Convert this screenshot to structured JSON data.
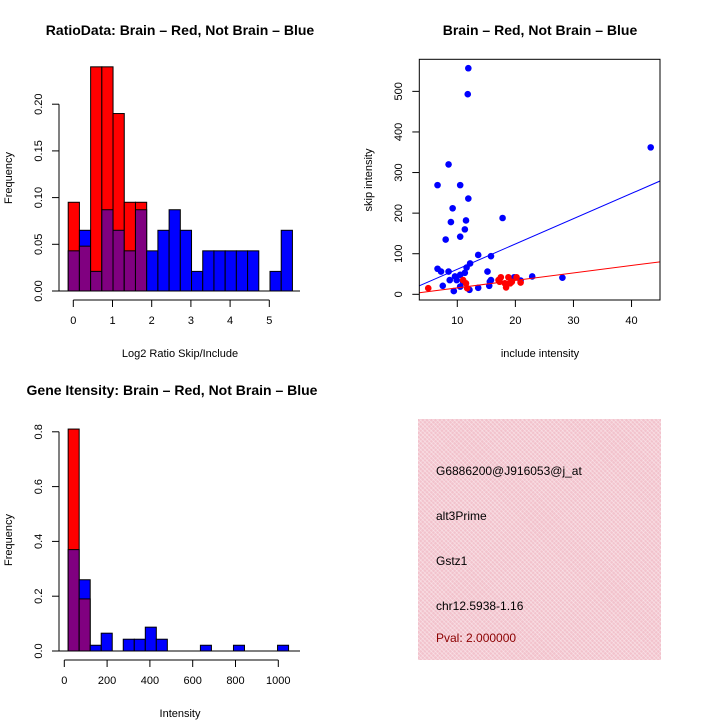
{
  "chart_data": [
    {
      "type": "bar",
      "title": "RatioData: Brain – Red, Not Brain – Blue",
      "xlabel": "Log2 Ratio Skip/Include",
      "ylabel": "Frequency",
      "bin_start": -0.13,
      "bin_width": 0.286,
      "xlim": [
        -0.5,
        5.8
      ],
      "ylim": [
        0,
        0.24
      ],
      "xticks": [
        0,
        1,
        2,
        3,
        4,
        5
      ],
      "yticks": [
        0.0,
        0.05,
        0.1,
        0.15,
        0.2
      ],
      "ytick_labels": [
        "0.00",
        "0.05",
        "0.10",
        "0.15",
        "0.20"
      ],
      "series": [
        {
          "name": "Brain",
          "color": "#ff0000",
          "values": [
            0.095,
            0.048,
            0.24,
            0.24,
            0.19,
            0.095,
            0.095,
            0,
            0,
            0,
            0,
            0,
            0,
            0,
            0,
            0,
            0,
            0,
            0,
            0
          ]
        },
        {
          "name": "Not Brain",
          "color": "#0000ff",
          "values": [
            0.043,
            0.065,
            0.021,
            0.087,
            0.065,
            0.043,
            0.087,
            0.043,
            0.065,
            0.087,
            0.065,
            0.021,
            0.043,
            0.043,
            0.043,
            0.043,
            0.043,
            0,
            0.021,
            0.065
          ]
        }
      ],
      "overlap_color": "#800080"
    },
    {
      "type": "scatter",
      "title": "Brain – Red, Not Brain – Blue",
      "xlabel": "include intensity",
      "ylabel": "skip intensity",
      "xlim": [
        3.46,
        44.9
      ],
      "ylim": [
        -14,
        579
      ],
      "xticks": [
        10,
        20,
        30,
        40
      ],
      "yticks": [
        0,
        100,
        200,
        300,
        400,
        500
      ],
      "series": [
        {
          "name": "Not Brain",
          "color": "#0000ff",
          "points": [
            [
              11.9,
              557
            ],
            [
              11.8,
              493
            ],
            [
              43.3,
              362
            ],
            [
              8.5,
              320
            ],
            [
              6.6,
              269
            ],
            [
              10.5,
              269
            ],
            [
              11.9,
              236
            ],
            [
              9.2,
              212
            ],
            [
              8.9,
              178
            ],
            [
              11.5,
              182
            ],
            [
              17.8,
              188
            ],
            [
              11.3,
              160
            ],
            [
              10.5,
              142
            ],
            [
              8.0,
              135
            ],
            [
              13.6,
              97
            ],
            [
              15.8,
              94
            ],
            [
              12.2,
              76
            ],
            [
              11.6,
              66
            ],
            [
              6.6,
              63
            ],
            [
              7.2,
              56
            ],
            [
              8.5,
              56
            ],
            [
              11.3,
              53
            ],
            [
              15.2,
              56
            ],
            [
              10.5,
              48
            ],
            [
              9.6,
              44
            ],
            [
              8.7,
              35
            ],
            [
              9.9,
              35
            ],
            [
              11.0,
              31
            ],
            [
              7.5,
              21
            ],
            [
              10.5,
              19
            ],
            [
              13.6,
              16
            ],
            [
              15.5,
              21
            ],
            [
              15.8,
              35
            ],
            [
              19.8,
              42
            ],
            [
              20.9,
              34
            ],
            [
              22.9,
              44
            ],
            [
              28.1,
              41
            ],
            [
              9.4,
              8
            ],
            [
              12.1,
              11
            ],
            [
              15.6,
              31
            ]
          ],
          "fit": {
            "slope": 6.23,
            "intercept": -0.6
          }
        },
        {
          "name": "Brain",
          "color": "#ff0000",
          "points": [
            [
              5.0,
              15
            ],
            [
              11.5,
              27
            ],
            [
              11.7,
              15
            ],
            [
              11.0,
              35
            ],
            [
              17.1,
              35
            ],
            [
              17.5,
              42
            ],
            [
              18.2,
              27
            ],
            [
              18.4,
              17
            ],
            [
              18.8,
              42
            ],
            [
              19.4,
              31
            ],
            [
              20.2,
              42
            ],
            [
              20.9,
              29
            ],
            [
              17.3,
              31
            ],
            [
              19.1,
              27
            ]
          ],
          "fit": {
            "slope": 1.835,
            "intercept": -2.35
          }
        }
      ]
    },
    {
      "type": "bar",
      "title": "Gene Itensity: Brain – Red, Not Brain – Blue",
      "xlabel": "Intensity",
      "ylabel": "Frequency",
      "bin_start": 18,
      "bin_width": 51.5,
      "xlim": [
        -60,
        1100
      ],
      "ylim": [
        0,
        0.81
      ],
      "xticks": [
        0,
        200,
        400,
        600,
        800,
        1000
      ],
      "yticks": [
        0.0,
        0.2,
        0.4,
        0.6,
        0.8
      ],
      "ytick_labels": [
        "0.0",
        "0.2",
        "0.4",
        "0.6",
        "0.8"
      ],
      "series": [
        {
          "name": "Brain",
          "color": "#ff0000",
          "values": [
            0.81,
            0.19,
            0,
            0,
            0,
            0,
            0,
            0,
            0,
            0,
            0,
            0,
            0,
            0,
            0,
            0,
            0,
            0,
            0,
            0
          ]
        },
        {
          "name": "Not Brain",
          "color": "#0000ff",
          "values": [
            0.37,
            0.26,
            0.021,
            0.065,
            0,
            0.043,
            0.043,
            0.087,
            0.043,
            0,
            0,
            0,
            0.021,
            0,
            0,
            0.021,
            0,
            0,
            0,
            0.021
          ]
        }
      ],
      "overlap_color": "#800080"
    }
  ],
  "info_panel": {
    "probe_id": "G6886200@J916053@j_at",
    "event_type": "alt3Prime",
    "gene": "Gstz1",
    "location": "chr12.5938-1.16",
    "pval": "Pval: 2.000000",
    "pval_color": "#8b0000"
  }
}
